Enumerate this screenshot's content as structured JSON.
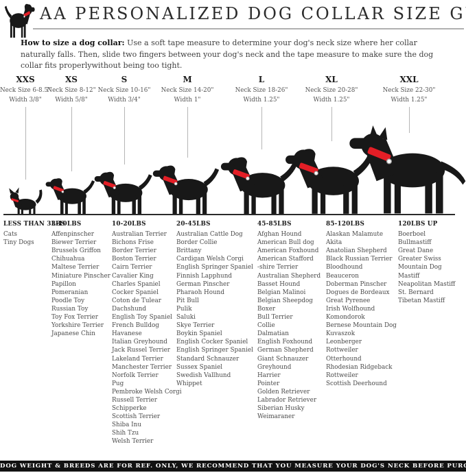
{
  "header": {
    "title": "AA PERSONALIZED DOG COLLAR SIZE GUIDE",
    "logo_icon": "dog-with-red-collar-icon"
  },
  "intro": {
    "lead": "How to size a dog collar:",
    "body": " Use a soft tape measure to determine your dog's neck size where her collar naturally falls. Then, slide two fingers between your dog's neck and the tape measure to make sure the dog collar fits properlywithout being too tight."
  },
  "sizes": [
    {
      "label": "XXS",
      "neck": "Neck Size 6-8.5\"",
      "width": "Width 3/8\""
    },
    {
      "label": "XS",
      "neck": "Neck Size 8-12\"",
      "width": "Width 5/8\""
    },
    {
      "label": "S",
      "neck": "Neck Size 10-16\"",
      "width": "Width 3/4\""
    },
    {
      "label": "M",
      "neck": "Neck Size 14-20\"",
      "width": "Width 1\""
    },
    {
      "label": "L",
      "neck": "Neck Size 18-26\"",
      "width": "Width 1.25\""
    },
    {
      "label": "XL",
      "neck": "Neck Size 20-28\"",
      "width": "Width 1.25\""
    },
    {
      "label": "XXL",
      "neck": "Neck Size 22-30\"",
      "width": "Width 1.25\""
    }
  ],
  "figures": [
    "cat-silhouette",
    "chihuahua-silhouette",
    "terrier-silhouette",
    "spaniel-silhouette",
    "retriever-silhouette",
    "labrador-silhouette",
    "great-dane-silhouette"
  ],
  "breed_groups": [
    {
      "weight": "LESS THAN 3LBS",
      "breeds": [
        "Cats",
        "Tiny Dogs"
      ]
    },
    {
      "weight": "3-10LBS",
      "breeds": [
        "Affenpinscher",
        "Biewer Terrier",
        "Brussels Griffon",
        "Chihuahua",
        "Maltese Terrier",
        "Miniature Pinscher",
        "Papillon",
        "Pomeranian",
        "Poodle Toy",
        "Russian Toy",
        "Toy Fox Terrier",
        "Yorkshire Terrier",
        "Japanese Chin"
      ]
    },
    {
      "weight": "10-20LBS",
      "breeds": [
        "Australian Terrier",
        "Bichons Frise",
        "Border Terrier",
        "Boston Terrier",
        "Cairn Terrier",
        "Cavalier King",
        "Charles Spaniel",
        "Cocker Spaniel",
        "Coton de Tulear",
        "Dachshund",
        "English Toy Spaniel",
        "French Bulldog",
        "Havanese",
        "Italian Greyhound",
        "Jack Russel Terrier",
        "Lakeland Terrier",
        "Manchester Terrier",
        "Norfolk Terrier",
        "Pug",
        "Pembroke Welsh Corgi",
        "Russell Terrier",
        "Schipperke",
        "Scottish Terrier",
        "Shiba Inu",
        "Shih Tzu",
        "Welsh Terrier"
      ]
    },
    {
      "weight": "20-45LBS",
      "breeds": [
        "Australian Cattle Dog",
        "Border Collie",
        "Brittany",
        "Cardigan Welsh Corgi",
        "English Springer Spaniel",
        "Finnish Lapphund",
        "German Pinscher",
        "Pharaoh Hound",
        "Pit Bull",
        "Pulik",
        "Saluki",
        "Skye Terrier",
        "Boykin Spaniel",
        "English Cocker Spaniel",
        "English Springer Spaniel",
        "Standard Schnauzer",
        "Sussex Spaniel",
        "Swedish Vallhund",
        "Whippet"
      ]
    },
    {
      "weight": "45-85LBS",
      "breeds": [
        "Afghan Hound",
        "American Bull dog",
        "American Foxhound",
        "American Stafford",
        "-shire Terrier",
        "Australian Shepherd",
        "Basset Hound",
        "Belgian Malinoi",
        "Belgian Sheepdog",
        "Boxer",
        "Bull Terrier",
        "Collie",
        "Dalmatian",
        "English Foxhound",
        "German Shepherd",
        "Giant Schnauzer",
        "Greyhound",
        "Harrier",
        "Pointer",
        "Golden Retriever",
        "Labrador Retriever",
        "Siberian Husky",
        "Weimaraner"
      ]
    },
    {
      "weight": "85-120LBS",
      "breeds": [
        "Alaskan Malamute",
        "Akita",
        "Anatolian Shepherd",
        "Black Russian Terrier",
        "Bloodhound",
        "Beauceron",
        "Doberman Pinscher",
        "Dogues de Bordeaux",
        "Great Pyrenee",
        "Irish Wolfhound",
        "Komondorok",
        "Bernese Mountain Dog",
        "Kuvaszok",
        "Leonberger",
        "Rottweiler",
        "Otterhound",
        "Rhodesian Ridgeback",
        "Rottweiler",
        "Scottish Deerhound"
      ]
    },
    {
      "weight": "120LBS UP",
      "breeds": [
        "Boerboel",
        "Bullmastiff",
        "Great Dane",
        "Greater Swiss",
        "Mountain Dog",
        "Mastiff",
        "Neapolitan Mastiff",
        "St. Bernard",
        "Tibetan Mastiff"
      ]
    }
  ],
  "footer": {
    "note": "DOG WEIGHT & BREEDS ARE FOR REF. ONLY, WE RECOMMEND THAT YOU MEASURE YOUR DOG'S NECK BEFORE PURCHASE"
  },
  "colors": {
    "collar_red": "#e31e26",
    "silhouette_black": "#181818",
    "indicator_line_gray": "#b5b5b5",
    "footer_black": "#121212"
  }
}
